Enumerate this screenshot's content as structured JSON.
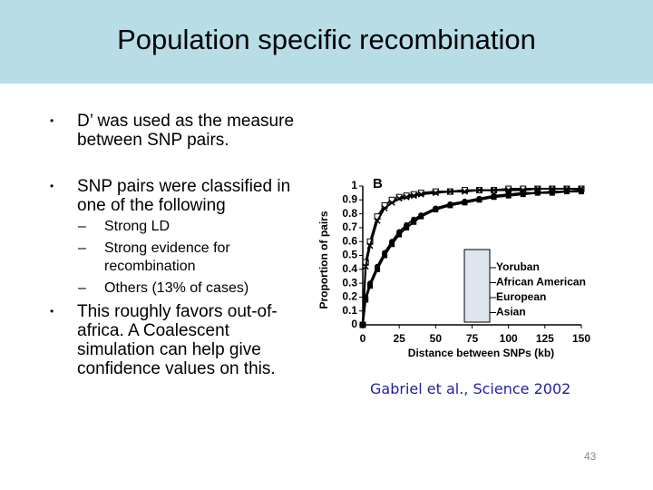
{
  "header": {
    "title": "Population specific recombination"
  },
  "bullets": [
    {
      "text": "D’ was used as the measure between SNP pairs."
    },
    {
      "text": "SNP pairs were classified in one of the following",
      "subitems": [
        "Strong LD",
        "Strong evidence for recombination",
        "Others (13% of cases)"
      ]
    },
    {
      "text": "This roughly favors out-of-africa. A Coalescent simulation can help give confidence values on this."
    }
  ],
  "citation": "Gabriel et al., Science 2002",
  "page_number": 43,
  "chart_data": {
    "type": "line",
    "panel_label": "B",
    "x_label": "Distance between SNPs (kb)",
    "y_label": "Proportion of pairs",
    "x": [
      0,
      2,
      5,
      10,
      15,
      20,
      25,
      30,
      35,
      40,
      50,
      60,
      70,
      80,
      90,
      100,
      110,
      120,
      130,
      140,
      150
    ],
    "series": [
      {
        "name": "Yoruban",
        "color": "#000000",
        "marker": "square-open",
        "values": [
          0,
          0.45,
          0.6,
          0.78,
          0.86,
          0.9,
          0.92,
          0.93,
          0.94,
          0.95,
          0.96,
          0.96,
          0.97,
          0.97,
          0.97,
          0.98,
          0.98,
          0.98,
          0.98,
          0.98,
          0.98
        ]
      },
      {
        "name": "African American",
        "color": "#000000",
        "marker": "cross",
        "values": [
          0,
          0.42,
          0.57,
          0.75,
          0.84,
          0.88,
          0.91,
          0.92,
          0.93,
          0.94,
          0.95,
          0.96,
          0.96,
          0.97,
          0.97,
          0.97,
          0.97,
          0.98,
          0.98,
          0.98,
          0.98
        ]
      },
      {
        "name": "European",
        "color": "#000000",
        "marker": "circle",
        "values": [
          0,
          0.2,
          0.3,
          0.42,
          0.52,
          0.6,
          0.67,
          0.72,
          0.76,
          0.79,
          0.84,
          0.87,
          0.89,
          0.91,
          0.93,
          0.94,
          0.95,
          0.95,
          0.96,
          0.96,
          0.97
        ]
      },
      {
        "name": "Asian",
        "color": "#000000",
        "marker": "square",
        "values": [
          0,
          0.18,
          0.28,
          0.4,
          0.5,
          0.58,
          0.65,
          0.7,
          0.74,
          0.78,
          0.83,
          0.86,
          0.88,
          0.9,
          0.92,
          0.93,
          0.94,
          0.95,
          0.95,
          0.96,
          0.96
        ]
      }
    ],
    "xlim": [
      0,
      150
    ],
    "xticks": [
      0,
      25,
      50,
      75,
      100,
      125,
      150
    ],
    "ylim": [
      0,
      1
    ],
    "yticks": [
      0,
      0.1,
      0.2,
      0.3,
      0.4,
      0.5,
      0.6,
      0.7,
      0.8,
      0.9,
      1
    ]
  }
}
